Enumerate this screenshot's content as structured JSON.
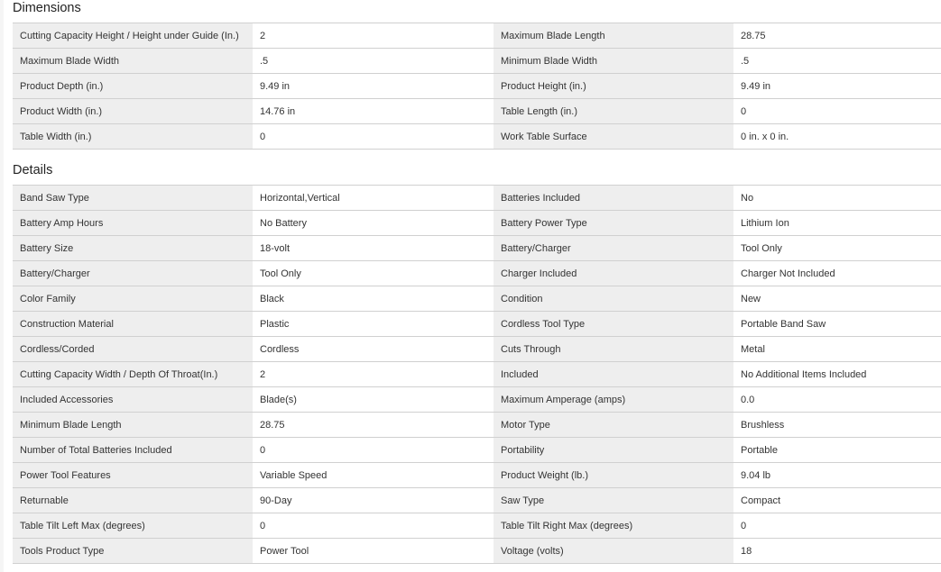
{
  "dimensions": {
    "title": "Dimensions",
    "rows": [
      [
        "Cutting Capacity Height / Height under Guide (In.)",
        "2",
        "Maximum Blade Length",
        "28.75"
      ],
      [
        "Maximum Blade Width",
        ".5",
        "Minimum Blade Width",
        ".5"
      ],
      [
        "Product Depth (in.)",
        "9.49 in",
        "Product Height (in.)",
        "9.49 in"
      ],
      [
        "Product Width (in.)",
        "14.76 in",
        "Table Length (in.)",
        "0"
      ],
      [
        "Table Width (in.)",
        "0",
        "Work Table Surface",
        "0 in. x 0 in."
      ]
    ]
  },
  "details": {
    "title": "Details",
    "rows": [
      [
        "Band Saw Type",
        "Horizontal,Vertical",
        "Batteries Included",
        "No"
      ],
      [
        "Battery Amp Hours",
        "No Battery",
        "Battery Power Type",
        "Lithium Ion"
      ],
      [
        "Battery Size",
        "18-volt",
        "Battery/Charger",
        "Tool Only"
      ],
      [
        "Battery/Charger",
        "Tool Only",
        "Charger Included",
        "Charger Not Included"
      ],
      [
        "Color Family",
        "Black",
        "Condition",
        "New"
      ],
      [
        "Construction Material",
        "Plastic",
        "Cordless Tool Type",
        "Portable Band Saw"
      ],
      [
        "Cordless/Corded",
        "Cordless",
        "Cuts Through",
        "Metal"
      ],
      [
        "Cutting Capacity Width / Depth Of Throat(In.)",
        "2",
        "Included",
        "No Additional Items Included"
      ],
      [
        "Included Accessories",
        "Blade(s)",
        "Maximum Amperage (amps)",
        "0.0"
      ],
      [
        "Minimum Blade Length",
        "28.75",
        "Motor Type",
        "Brushless"
      ],
      [
        "Number of Total Batteries Included",
        "0",
        "Portability",
        "Portable"
      ],
      [
        "Power Tool Features",
        "Variable Speed",
        "Product Weight (lb.)",
        "9.04 lb"
      ],
      [
        "Returnable",
        "90-Day",
        "Saw Type",
        "Compact"
      ],
      [
        "Table Tilt Left Max (degrees)",
        "0",
        "Table Tilt Right Max (degrees)",
        "0"
      ],
      [
        "Tools Product Type",
        "Power Tool",
        "Voltage (volts)",
        "18"
      ]
    ]
  }
}
